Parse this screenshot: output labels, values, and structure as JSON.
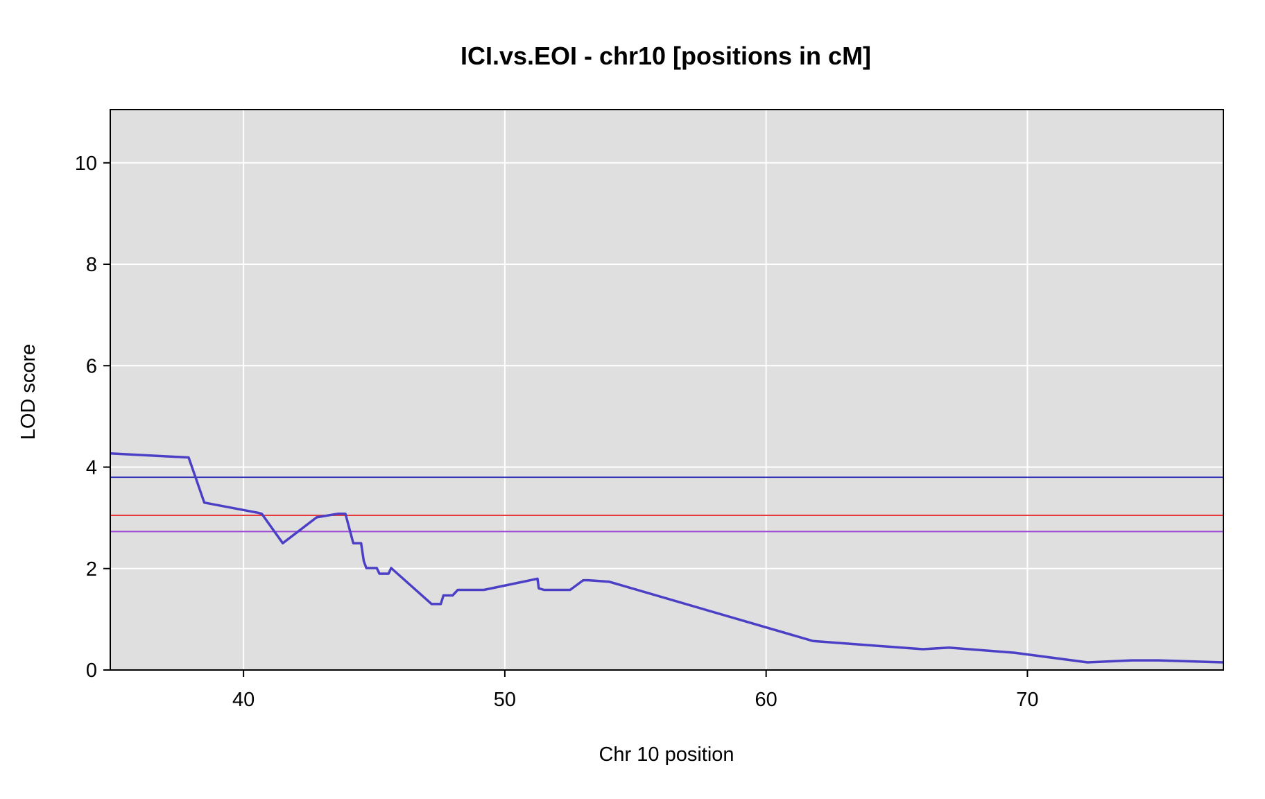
{
  "chart_data": {
    "type": "line",
    "title": "ICI.vs.EOI - chr10 [positions in cM]",
    "xlabel": "Chr 10 position",
    "ylabel": "LOD score",
    "xlim": [
      34.9,
      77.5
    ],
    "ylim": [
      0,
      11.05
    ],
    "xticks": [
      40,
      50,
      60,
      70
    ],
    "yticks": [
      0,
      2,
      4,
      6,
      8,
      10
    ],
    "grid": true,
    "background": "#dfdfdf",
    "gridColor": "#ffffff",
    "series": [
      {
        "color": "#4b3fc6",
        "x": [
          34.9,
          37.9,
          38.5,
          40.55,
          40.7,
          41.5,
          42.8,
          43.6,
          43.9,
          44.2,
          44.5,
          44.6,
          44.7,
          45.1,
          45.2,
          45.55,
          45.65,
          47.2,
          47.55,
          47.65,
          48.0,
          48.2,
          49.2,
          51.25,
          51.3,
          51.5,
          51.7,
          52.5,
          53.0,
          53.2,
          54.0,
          61.8,
          66.0,
          67.0,
          69.5,
          72.3,
          74.0,
          75.0,
          77.5
        ],
        "y": [
          4.27,
          4.19,
          3.3,
          3.1,
          3.08,
          2.5,
          3.01,
          3.08,
          3.08,
          2.5,
          2.5,
          2.15,
          2.01,
          2.01,
          1.9,
          1.9,
          2.01,
          1.3,
          1.3,
          1.47,
          1.47,
          1.58,
          1.58,
          1.8,
          1.61,
          1.58,
          1.58,
          1.58,
          1.77,
          1.77,
          1.74,
          0.57,
          0.41,
          0.44,
          0.34,
          0.15,
          0.19,
          0.19,
          0.15
        ]
      }
    ],
    "thresholds": [
      {
        "value": 3.8,
        "color": "#3535b8"
      },
      {
        "value": 3.05,
        "color": "#e83a3a"
      },
      {
        "value": 2.73,
        "color": "#9a47d6"
      }
    ]
  }
}
